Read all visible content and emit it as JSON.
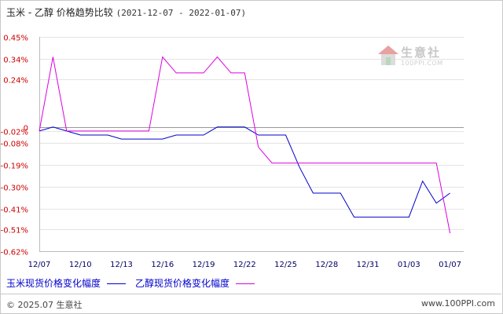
{
  "header": {
    "title_name": "玉米 - 乙醇 价格趋势比较",
    "title_range": "(2021-12-07 - 2022-01-07)"
  },
  "watermark": {
    "text": "生意社",
    "url": "100PPI.COM"
  },
  "footer": {
    "copyright": "© 2025.07 生意社",
    "site": "www.100PPI.com"
  },
  "chart_data": {
    "type": "line",
    "title": "玉米 - 乙醇 价格趋势比较(2021-12-07 - 2022-01-07)",
    "xlabel": "",
    "ylabel": "",
    "ylim": [
      -0.62,
      0.45
    ],
    "y_ticks": [
      0.45,
      0.34,
      0.24,
      0,
      -0.02,
      -0.08,
      -0.19,
      -0.3,
      -0.41,
      -0.51,
      -0.62
    ],
    "y_tick_labels": [
      "0.45%",
      "0.34%",
      "0.24%",
      "0",
      "-0.02%",
      "-0.08%",
      "-0.19%",
      "-0.30%",
      "-0.41%",
      "-0.51%",
      "-0.62%"
    ],
    "x_tick_labels": [
      "12/07",
      "12/10",
      "12/13",
      "12/16",
      "12/19",
      "12/22",
      "12/25",
      "12/28",
      "12/31",
      "01/03",
      "01/07"
    ],
    "x_ticks": [
      "2021-12-07",
      "2021-12-10",
      "2021-12-13",
      "2021-12-16",
      "2021-12-19",
      "2021-12-22",
      "2021-12-25",
      "2021-12-28",
      "2021-12-31",
      "2022-01-03",
      "2022-01-06"
    ],
    "x_range": [
      "2021-12-07",
      "2022-01-07"
    ],
    "grid": "horizontal",
    "legend_position": "bottom",
    "series": [
      {
        "name": "玉米现货价格变化幅度",
        "color": "#0000cc",
        "points": [
          [
            "2021-12-07",
            -0.02
          ],
          [
            "2021-12-08",
            0.0
          ],
          [
            "2021-12-09",
            -0.02
          ],
          [
            "2021-12-10",
            -0.04
          ],
          [
            "2021-12-11",
            -0.04
          ],
          [
            "2021-12-12",
            -0.04
          ],
          [
            "2021-12-13",
            -0.06
          ],
          [
            "2021-12-14",
            -0.06
          ],
          [
            "2021-12-15",
            -0.06
          ],
          [
            "2021-12-16",
            -0.06
          ],
          [
            "2021-12-17",
            -0.04
          ],
          [
            "2021-12-18",
            -0.04
          ],
          [
            "2021-12-19",
            -0.04
          ],
          [
            "2021-12-20",
            0.0
          ],
          [
            "2021-12-21",
            0.0
          ],
          [
            "2021-12-22",
            0.0
          ],
          [
            "2021-12-23",
            -0.04
          ],
          [
            "2021-12-24",
            -0.04
          ],
          [
            "2021-12-25",
            -0.04
          ],
          [
            "2021-12-26",
            -0.2
          ],
          [
            "2021-12-27",
            -0.33
          ],
          [
            "2021-12-28",
            -0.33
          ],
          [
            "2021-12-29",
            -0.33
          ],
          [
            "2021-12-30",
            -0.45
          ],
          [
            "2021-12-31",
            -0.45
          ],
          [
            "2022-01-01",
            -0.45
          ],
          [
            "2022-01-02",
            -0.45
          ],
          [
            "2022-01-03",
            -0.45
          ],
          [
            "2022-01-04",
            -0.27
          ],
          [
            "2022-01-05",
            -0.38
          ],
          [
            "2022-01-06",
            -0.33
          ]
        ]
      },
      {
        "name": "乙醇现货价格变化幅度",
        "color": "#dd00dd",
        "points": [
          [
            "2021-12-07",
            -0.02
          ],
          [
            "2021-12-08",
            0.35
          ],
          [
            "2021-12-09",
            -0.02
          ],
          [
            "2021-12-10",
            -0.02
          ],
          [
            "2021-12-11",
            -0.02
          ],
          [
            "2021-12-12",
            -0.02
          ],
          [
            "2021-12-13",
            -0.02
          ],
          [
            "2021-12-14",
            -0.02
          ],
          [
            "2021-12-15",
            -0.02
          ],
          [
            "2021-12-16",
            0.35
          ],
          [
            "2021-12-17",
            0.27
          ],
          [
            "2021-12-18",
            0.27
          ],
          [
            "2021-12-19",
            0.27
          ],
          [
            "2021-12-20",
            0.35
          ],
          [
            "2021-12-21",
            0.27
          ],
          [
            "2021-12-22",
            0.27
          ],
          [
            "2021-12-23",
            -0.1
          ],
          [
            "2021-12-24",
            -0.18
          ],
          [
            "2021-12-25",
            -0.18
          ],
          [
            "2021-12-26",
            -0.18
          ],
          [
            "2021-12-27",
            -0.18
          ],
          [
            "2021-12-28",
            -0.18
          ],
          [
            "2021-12-29",
            -0.18
          ],
          [
            "2021-12-30",
            -0.18
          ],
          [
            "2021-12-31",
            -0.18
          ],
          [
            "2022-01-01",
            -0.18
          ],
          [
            "2022-01-02",
            -0.18
          ],
          [
            "2022-01-03",
            -0.18
          ],
          [
            "2022-01-04",
            -0.18
          ],
          [
            "2022-01-05",
            -0.18
          ],
          [
            "2022-01-06",
            -0.53
          ]
        ]
      }
    ]
  }
}
